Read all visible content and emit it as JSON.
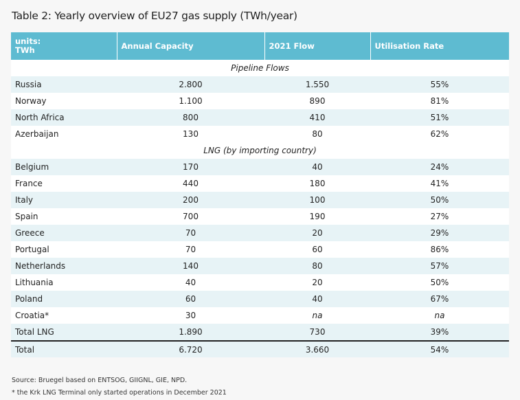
{
  "title": "Table 2: Yearly overview of EU27 gas supply (TWh/year)",
  "table": {
    "headers": [
      "units:\nTWh",
      "Annual Capacity",
      "2021 Flow",
      "Utilisation Rate"
    ],
    "pipeline_label": "Pipeline Flows",
    "pipeline_rows": [
      {
        "country": "Russia",
        "capacity": "2.800",
        "flow": "1.550",
        "rate": "55%"
      },
      {
        "country": "Norway",
        "capacity": "1.100",
        "flow": "890",
        "rate": "81%"
      },
      {
        "country": "North Africa",
        "capacity": "800",
        "flow": "410",
        "rate": "51%"
      },
      {
        "country": "Azerbaijan",
        "capacity": "130",
        "flow": "80",
        "rate": "62%"
      }
    ],
    "lng_label": "LNG (by importing country)",
    "lng_rows": [
      {
        "country": "Belgium",
        "capacity": "170",
        "flow": "40",
        "rate": "24%"
      },
      {
        "country": "France",
        "capacity": "440",
        "flow": "180",
        "rate": "41%"
      },
      {
        "country": "Italy",
        "capacity": "200",
        "flow": "100",
        "rate": "50%"
      },
      {
        "country": "Spain",
        "capacity": "700",
        "flow": "190",
        "rate": "27%"
      },
      {
        "country": "Greece",
        "capacity": "70",
        "flow": "20",
        "rate": "29%"
      },
      {
        "country": "Portugal",
        "capacity": "70",
        "flow": "60",
        "rate": "86%"
      },
      {
        "country": "Netherlands",
        "capacity": "140",
        "flow": "80",
        "rate": "57%"
      },
      {
        "country": "Lithuania",
        "capacity": "40",
        "flow": "20",
        "rate": "50%"
      },
      {
        "country": "Poland",
        "capacity": "60",
        "flow": "40",
        "rate": "67%"
      },
      {
        "country": "Croatia*",
        "capacity": "30",
        "flow": "na",
        "rate": "na"
      },
      {
        "country": "Total LNG",
        "capacity": "1.890",
        "flow": "730",
        "rate": "39%"
      }
    ],
    "total_row": {
      "country": "Total",
      "capacity": "6.720",
      "flow": "3.660",
      "rate": "54%"
    }
  },
  "notes": {
    "source": "Source: Bruegel based on ENTSOG, GIIGNL, GIE, NPD.",
    "footnote": "* the Krk LNG Terminal only started operations in December 2021"
  },
  "colors": {
    "header_bg": "#5ebbd1",
    "row_shade": "#e7f3f6"
  }
}
